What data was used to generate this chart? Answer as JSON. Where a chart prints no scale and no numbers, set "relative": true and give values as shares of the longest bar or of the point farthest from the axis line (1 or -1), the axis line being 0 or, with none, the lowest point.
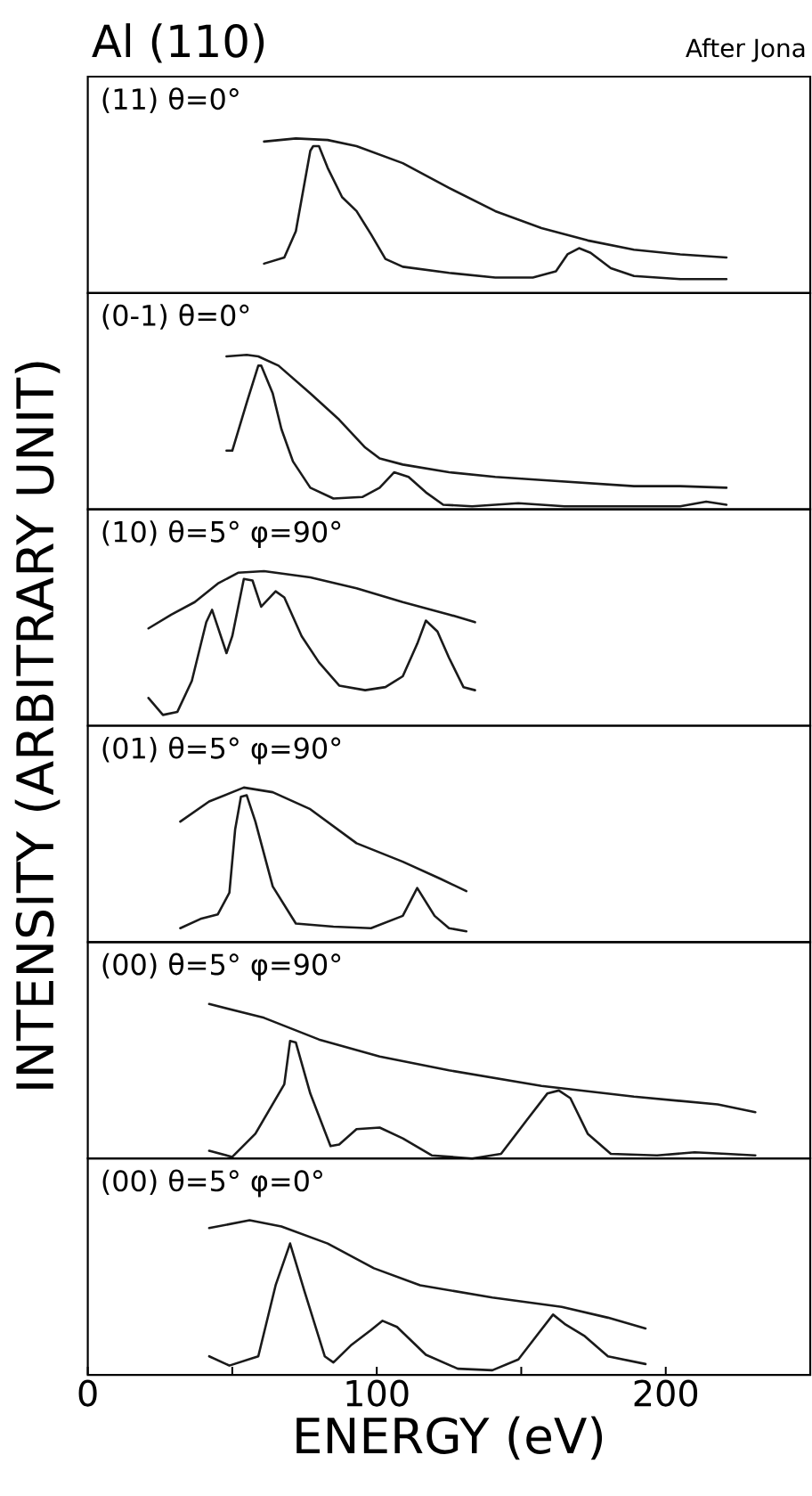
{
  "chart_data": [
    {
      "type": "line",
      "title": "Al (110)",
      "subtitle": "After Jona",
      "ylabel": "INTENSITY (ARBITRARY UNIT)",
      "relative": true,
      "xlim": [
        0,
        250
      ],
      "tick_labels": false,
      "annotations": [
        "(11) θ=0°"
      ],
      "series": [
        {
          "color": "#1a1a1a",
          "x": [
            61,
            72,
            83,
            93,
            109,
            125,
            141,
            157,
            173,
            189,
            205,
            221
          ],
          "values": [
            0.98,
            1.0,
            0.99,
            0.95,
            0.84,
            0.68,
            0.53,
            0.42,
            0.34,
            0.28,
            0.25,
            0.23
          ]
        },
        {
          "color": "#1a1a1a",
          "x": [
            61,
            68,
            72,
            77,
            78,
            80,
            83,
            88,
            93,
            98,
            103,
            109,
            125,
            141,
            154,
            162,
            166,
            170,
            174,
            181,
            189,
            205,
            221
          ],
          "values": [
            0.19,
            0.23,
            0.4,
            0.92,
            0.95,
            0.95,
            0.81,
            0.62,
            0.53,
            0.38,
            0.22,
            0.17,
            0.13,
            0.1,
            0.1,
            0.14,
            0.25,
            0.29,
            0.26,
            0.16,
            0.11,
            0.09,
            0.09
          ]
        }
      ]
    },
    {
      "type": "line",
      "relative": true,
      "xlim": [
        0,
        250
      ],
      "tick_labels": false,
      "annotations": [
        "(0-1) θ=0°"
      ],
      "series": [
        {
          "color": "#1a1a1a",
          "x": [
            48,
            55,
            59,
            66,
            77,
            87,
            96,
            101,
            109,
            125,
            141,
            157,
            173,
            189,
            205,
            221
          ],
          "values": [
            0.99,
            1.0,
            0.99,
            0.93,
            0.75,
            0.58,
            0.4,
            0.33,
            0.29,
            0.24,
            0.21,
            0.19,
            0.17,
            0.15,
            0.15,
            0.14
          ]
        },
        {
          "color": "#1a1a1a",
          "x": [
            48,
            50,
            55,
            59,
            60,
            64,
            67,
            71,
            77,
            85,
            95,
            101,
            106,
            111,
            117,
            123,
            133,
            149,
            165,
            189,
            205,
            214,
            221
          ],
          "values": [
            0.38,
            0.38,
            0.69,
            0.93,
            0.93,
            0.75,
            0.52,
            0.31,
            0.14,
            0.07,
            0.08,
            0.14,
            0.24,
            0.21,
            0.11,
            0.03,
            0.02,
            0.04,
            0.02,
            0.02,
            0.02,
            0.05,
            0.03
          ]
        }
      ]
    },
    {
      "type": "line",
      "relative": true,
      "xlim": [
        0,
        250
      ],
      "tick_labels": false,
      "annotations": [
        "(10) θ=5° φ=90°"
      ],
      "series": [
        {
          "color": "#1a1a1a",
          "x": [
            21,
            29,
            37,
            45,
            52,
            61,
            77,
            93,
            109,
            125,
            134
          ],
          "values": [
            0.63,
            0.72,
            0.8,
            0.92,
            0.99,
            1.0,
            0.96,
            0.89,
            0.8,
            0.72,
            0.67
          ]
        },
        {
          "color": "#1a1a1a",
          "x": [
            21,
            26,
            31,
            36,
            41,
            43,
            48,
            50,
            54,
            57,
            60,
            65,
            68,
            74,
            80,
            87,
            96,
            103,
            109,
            114,
            117,
            121,
            125,
            130,
            134
          ],
          "values": [
            0.18,
            0.07,
            0.09,
            0.29,
            0.67,
            0.75,
            0.47,
            0.58,
            0.95,
            0.94,
            0.77,
            0.87,
            0.83,
            0.58,
            0.41,
            0.26,
            0.23,
            0.25,
            0.32,
            0.53,
            0.68,
            0.61,
            0.44,
            0.25,
            0.23
          ]
        }
      ]
    },
    {
      "type": "line",
      "relative": true,
      "xlim": [
        0,
        250
      ],
      "tick_labels": false,
      "annotations": [
        "(01) θ=5° φ=90°"
      ],
      "series": [
        {
          "color": "#1a1a1a",
          "x": [
            32,
            42,
            54,
            64,
            77,
            93,
            109,
            122,
            131
          ],
          "values": [
            0.78,
            0.91,
            1.0,
            0.97,
            0.86,
            0.64,
            0.52,
            0.41,
            0.33
          ]
        },
        {
          "color": "#1a1a1a",
          "x": [
            32,
            39,
            45,
            49,
            51,
            53,
            55,
            58,
            64,
            72,
            85,
            98,
            109,
            114,
            120,
            125,
            131
          ],
          "values": [
            0.09,
            0.15,
            0.18,
            0.32,
            0.73,
            0.94,
            0.95,
            0.78,
            0.36,
            0.12,
            0.1,
            0.09,
            0.17,
            0.35,
            0.17,
            0.09,
            0.07
          ]
        }
      ]
    },
    {
      "type": "line",
      "relative": true,
      "xlim": [
        0,
        250
      ],
      "tick_labels": false,
      "annotations": [
        "(00) θ=5° φ=90°"
      ],
      "series": [
        {
          "color": "#1a1a1a",
          "x": [
            42,
            61,
            80,
            101,
            125,
            157,
            189,
            218,
            231
          ],
          "values": [
            1.0,
            0.91,
            0.77,
            0.66,
            0.57,
            0.47,
            0.4,
            0.35,
            0.3
          ]
        },
        {
          "color": "#1a1a1a",
          "x": [
            42,
            50,
            58,
            68,
            70,
            72,
            77,
            84,
            87,
            93,
            101,
            109,
            119,
            133,
            143,
            152,
            159,
            163,
            167,
            173,
            181,
            197,
            210,
            221,
            231
          ],
          "values": [
            0.05,
            0.01,
            0.16,
            0.48,
            0.76,
            0.75,
            0.42,
            0.08,
            0.09,
            0.19,
            0.2,
            0.13,
            0.02,
            0,
            0.03,
            0.25,
            0.42,
            0.44,
            0.39,
            0.16,
            0.03,
            0.02,
            0.04,
            0.03,
            0.02
          ]
        }
      ]
    },
    {
      "type": "line",
      "xlabel": "ENERGY (eV)",
      "relative": true,
      "xlim": [
        0,
        250
      ],
      "xticks": [
        0,
        {
          "value": 50,
          "label": null
        },
        100,
        {
          "value": 150,
          "label": null
        },
        200
      ],
      "tick_labels": "x",
      "annotations": [
        "(00) θ=5° φ=0°"
      ],
      "series": [
        {
          "color": "#1a1a1a",
          "x": [
            42,
            56,
            67,
            83,
            99,
            115,
            140,
            164,
            180,
            193
          ],
          "values": [
            0.95,
            1.0,
            0.96,
            0.85,
            0.69,
            0.58,
            0.5,
            0.44,
            0.37,
            0.3
          ]
        },
        {
          "color": "#1a1a1a",
          "x": [
            42,
            49,
            59,
            65,
            70,
            75,
            82,
            85,
            91,
            98,
            102,
            107,
            117,
            128,
            140,
            149,
            156,
            161,
            165,
            172,
            180,
            193
          ],
          "values": [
            0.12,
            0.06,
            0.12,
            0.58,
            0.85,
            0.54,
            0.12,
            0.08,
            0.19,
            0.29,
            0.35,
            0.31,
            0.13,
            0.04,
            0.03,
            0.1,
            0.27,
            0.39,
            0.33,
            0.25,
            0.12,
            0.07
          ]
        }
      ]
    }
  ]
}
